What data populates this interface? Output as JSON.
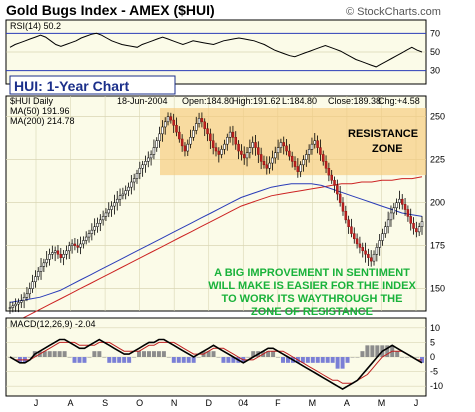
{
  "chart_data": {
    "type": "candlestick",
    "title": "Gold Bugs Index - AMEX ($HUI)",
    "credit": "© StockCharts.com",
    "symbol_label": "$HUI Daily",
    "date": "18-Jun-2004",
    "ohlc": {
      "open": "Open:184.80",
      "high": "High:191.62",
      "low": "L:184.80",
      "close": "Close:189.38",
      "chg": "Chg:+4.58"
    },
    "ma50": {
      "label": "MA(50) 191.96",
      "color": "#2a3cb8"
    },
    "ma200": {
      "label": "MA(200) 214.78",
      "color": "#cc2222"
    },
    "x_ticks": [
      "J",
      "A",
      "S",
      "O",
      "N",
      "D",
      "04",
      "F",
      "M",
      "A",
      "M",
      "J"
    ],
    "main_y_ticks": [
      150,
      175,
      200,
      225,
      250
    ],
    "ylim": [
      137,
      262
    ],
    "price_series": [
      139,
      140,
      141,
      142,
      143,
      145,
      147,
      150,
      154,
      157,
      160,
      163,
      165,
      167,
      170,
      171,
      172,
      170,
      168,
      170,
      172,
      175,
      176,
      175,
      174,
      176,
      178,
      180,
      182,
      184,
      186,
      188,
      190,
      192,
      194,
      196,
      198,
      200,
      202,
      204,
      205,
      207,
      209,
      212,
      214,
      217,
      220,
      222,
      224,
      226,
      228,
      232,
      236,
      240,
      244,
      247,
      250,
      248,
      245,
      241,
      237,
      233,
      230,
      234,
      238,
      242,
      246,
      249,
      247,
      243,
      240,
      236,
      232,
      230,
      228,
      231,
      234,
      238,
      241,
      238,
      234,
      230,
      228,
      226,
      229,
      232,
      235,
      232,
      228,
      224,
      222,
      220,
      223,
      226,
      229,
      232,
      235,
      233,
      230,
      227,
      224,
      221,
      218,
      222,
      225,
      228,
      231,
      234,
      236,
      232,
      228,
      224,
      220,
      216,
      213,
      210,
      205,
      200,
      195,
      190,
      186,
      182,
      179,
      176,
      174,
      172,
      170,
      168,
      166,
      170,
      174,
      178,
      182,
      186,
      190,
      194,
      197,
      200,
      202,
      199,
      196,
      192,
      188,
      185,
      183,
      186,
      189
    ],
    "ma50_series": [
      142,
      143,
      144,
      145,
      147,
      149,
      152,
      155,
      158,
      161,
      164,
      167,
      170,
      173,
      176,
      179,
      182,
      185,
      188,
      191,
      194,
      197,
      200,
      203,
      205,
      207,
      209,
      210,
      211,
      211,
      211,
      210,
      208,
      206,
      204,
      202,
      200,
      198,
      196,
      194,
      193,
      192
    ],
    "ma200_series": [
      130,
      132,
      135,
      138,
      141,
      144,
      147,
      150,
      153,
      156,
      159,
      162,
      165,
      168,
      171,
      174,
      177,
      180,
      183,
      186,
      189,
      192,
      195,
      198,
      200,
      202,
      204,
      205,
      206,
      207,
      208,
      209,
      210,
      211,
      211,
      212,
      212,
      213,
      213,
      214,
      214,
      215
    ],
    "resistance_zone": {
      "label_lines": [
        "RESISTANCE",
        "ZONE"
      ],
      "y_range": [
        216,
        255
      ]
    },
    "green_annotation": [
      "A BIG IMPROVEMENT IN SENTIMENT",
      "WILL MAKE IS EASIER FOR THE INDEX",
      "TO WORK ITS WAYTHROUGH THE",
      "ZONE OF RESISTANCE"
    ],
    "hui_label": "HUI: 1-Year Chart",
    "rsi": {
      "label": "RSI(14) 50.2",
      "ticks": [
        30,
        50,
        70
      ],
      "series": [
        55,
        58,
        60,
        62,
        64,
        66,
        68,
        66,
        62,
        58,
        56,
        58,
        60,
        62,
        65,
        67,
        69,
        70,
        68,
        65,
        62,
        60,
        58,
        57,
        56,
        55,
        58,
        60,
        62,
        64,
        66,
        64,
        62,
        60,
        58,
        60,
        62,
        61,
        60,
        59,
        58,
        60,
        62,
        63,
        64,
        65,
        64,
        63,
        62,
        60,
        58,
        55,
        52,
        50,
        48,
        46,
        45,
        47,
        49,
        51,
        53,
        55,
        57,
        55,
        53,
        51,
        48,
        45,
        42,
        40,
        38,
        36,
        34,
        37,
        40,
        43,
        46,
        49,
        52,
        55,
        52,
        50
      ]
    },
    "macd": {
      "label": "MACD(12,26,9) -2.04",
      "ticks": [
        -10,
        -5,
        0,
        5,
        10
      ],
      "series": [
        0,
        -1,
        -2,
        -2,
        -1,
        1,
        2,
        3,
        4,
        5,
        6,
        6,
        5,
        4,
        3,
        3,
        4,
        5,
        6,
        5,
        4,
        3,
        2,
        1,
        1,
        2,
        3,
        4,
        5,
        5,
        6,
        6,
        5,
        4,
        3,
        2,
        1,
        0,
        1,
        2,
        3,
        4,
        3,
        2,
        1,
        0,
        -1,
        -2,
        -1,
        0,
        1,
        2,
        3,
        3,
        2,
        1,
        0,
        -1,
        -2,
        -3,
        -4,
        -5,
        -6,
        -7,
        -8,
        -9,
        -10,
        -11,
        -10,
        -9,
        -8,
        -6,
        -4,
        -2,
        0,
        2,
        3,
        4,
        3,
        2,
        1,
        0,
        -1,
        -2
      ],
      "signal": [
        0,
        -1,
        -1,
        -1,
        -1,
        0,
        1,
        2,
        3,
        4,
        5,
        5,
        5,
        5,
        4,
        4,
        4,
        4,
        5,
        5,
        5,
        4,
        3,
        2,
        2,
        2,
        2,
        3,
        4,
        4,
        5,
        5,
        5,
        5,
        4,
        3,
        2,
        1,
        1,
        1,
        2,
        3,
        3,
        3,
        2,
        1,
        0,
        -1,
        -1,
        -1,
        0,
        1,
        2,
        2,
        2,
        2,
        1,
        0,
        -1,
        -2,
        -3,
        -4,
        -5,
        -6,
        -7,
        -8,
        -8,
        -9,
        -9,
        -9,
        -8,
        -7,
        -6,
        -4,
        -2,
        0,
        1,
        2,
        2,
        2,
        1,
        0,
        -1,
        -1
      ]
    }
  }
}
